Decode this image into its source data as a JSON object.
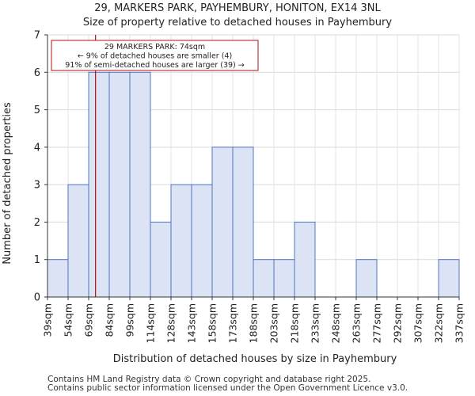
{
  "chart_data": {
    "type": "histogram",
    "title": "29, MARKERS PARK, PAYHEMBURY, HONITON, EX14 3NL",
    "subtitle": "Size of property relative to detached houses in Payhembury",
    "xlabel": "Distribution of detached houses by size in Payhembury",
    "ylabel": "Number of detached properties",
    "categories": [
      "39sqm",
      "54sqm",
      "69sqm",
      "84sqm",
      "99sqm",
      "114sqm",
      "128sqm",
      "143sqm",
      "158sqm",
      "173sqm",
      "188sqm",
      "203sqm",
      "218sqm",
      "233sqm",
      "248sqm",
      "263sqm",
      "277sqm",
      "292sqm",
      "307sqm",
      "322sqm",
      "337sqm"
    ],
    "values": [
      1,
      3,
      6,
      6,
      6,
      2,
      3,
      3,
      4,
      4,
      1,
      1,
      2,
      0,
      0,
      1,
      0,
      0,
      0,
      1
    ],
    "ylim": [
      0,
      7
    ],
    "yticks": [
      0,
      1,
      2,
      3,
      4,
      5,
      6,
      7
    ],
    "grid": true,
    "bar_color": "#dbe3f5",
    "bar_edge_color": "#4f74c0",
    "marker": {
      "value_sqm": 74,
      "line_color": "#b01010",
      "annotation": [
        "29 MARKERS PARK: 74sqm",
        "← 9% of detached houses are smaller (4)",
        "91% of semi-detached houses are larger (39) →"
      ]
    }
  },
  "footer": {
    "line1": "Contains HM Land Registry data © Crown copyright and database right 2025.",
    "line2": "Contains public sector information licensed under the Open Government Licence v3.0."
  }
}
